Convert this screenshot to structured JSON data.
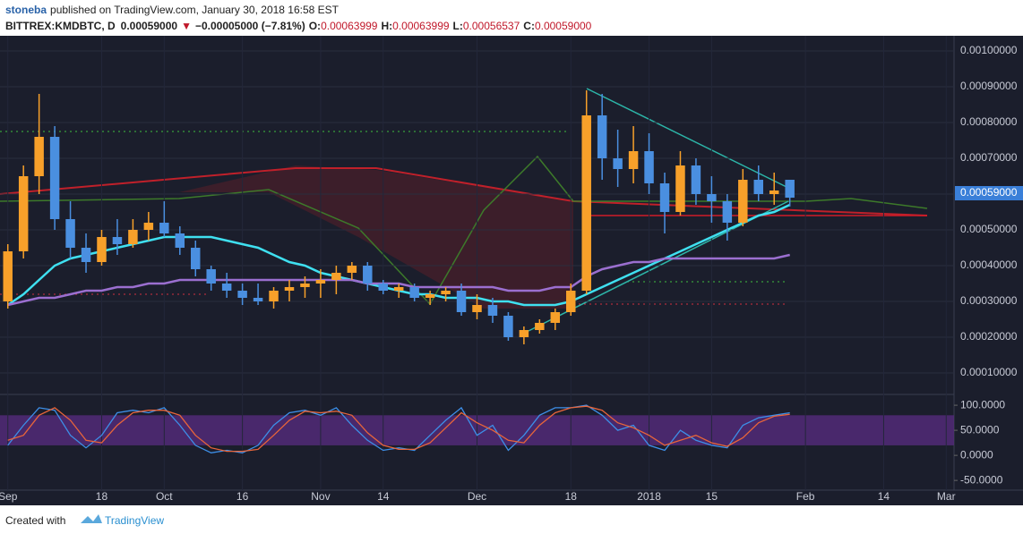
{
  "header": {
    "author": "stoneba",
    "published": "published on TradingView.com, January 30, 2018 16:58 EST",
    "symbol": "BITTREX:KMDBTC, D",
    "last": "0.00059000",
    "arrow": "▼",
    "change": "−0.00005000 (−7.81%)",
    "o_label": "O:",
    "o": "0.00063999",
    "h_label": "H:",
    "h": "0.00063999",
    "l_label": "L:",
    "l": "0.00056537",
    "c_label": "C:",
    "c": "0.00059000"
  },
  "chart_data": {
    "type": "candlestick",
    "categories": [
      "Sep",
      null,
      null,
      null,
      null,
      null,
      "18",
      null,
      null,
      null,
      "Oct",
      null,
      null,
      null,
      null,
      "16",
      null,
      null,
      null,
      null,
      "Nov",
      null,
      null,
      null,
      "14",
      null,
      null,
      null,
      null,
      null,
      "Dec",
      null,
      null,
      null,
      null,
      null,
      "18",
      null,
      null,
      null,
      null,
      "2018",
      null,
      null,
      null,
      "15",
      null,
      null,
      null,
      null,
      null,
      "Feb",
      null,
      null,
      null,
      null,
      "14",
      null,
      null,
      null,
      "Mar"
    ],
    "ohlc": [
      [
        0.0003,
        0.00046,
        0.00028,
        0.00044
      ],
      [
        0.00044,
        0.00068,
        0.00042,
        0.00065
      ],
      [
        0.00065,
        0.00088,
        0.0006,
        0.00076
      ],
      [
        0.00076,
        0.00079,
        0.0005,
        0.00053
      ],
      [
        0.00053,
        0.00058,
        0.00042,
        0.00045
      ],
      [
        0.00045,
        0.00049,
        0.00038,
        0.00041
      ],
      [
        0.00041,
        0.0005,
        0.0004,
        0.00048
      ],
      [
        0.00048,
        0.00053,
        0.00043,
        0.00046
      ],
      [
        0.00046,
        0.00053,
        0.00045,
        0.0005
      ],
      [
        0.0005,
        0.00055,
        0.00047,
        0.00052
      ],
      [
        0.00052,
        0.00058,
        0.00048,
        0.00049
      ],
      [
        0.00049,
        0.00051,
        0.00043,
        0.00045
      ],
      [
        0.00045,
        0.00047,
        0.00037,
        0.00039
      ],
      [
        0.00039,
        0.0004,
        0.00033,
        0.00035
      ],
      [
        0.00035,
        0.00038,
        0.00031,
        0.00033
      ],
      [
        0.00033,
        0.00035,
        0.00029,
        0.00031
      ],
      [
        0.00031,
        0.00035,
        0.00029,
        0.0003
      ],
      [
        0.0003,
        0.00034,
        0.00028,
        0.00033
      ],
      [
        0.00033,
        0.00036,
        0.0003,
        0.00034
      ],
      [
        0.00034,
        0.00037,
        0.00031,
        0.00035
      ],
      [
        0.00035,
        0.00039,
        0.00031,
        0.00036
      ],
      [
        0.00036,
        0.0004,
        0.00032,
        0.00038
      ],
      [
        0.00038,
        0.00041,
        0.00036,
        0.0004
      ],
      [
        0.0004,
        0.00041,
        0.00033,
        0.00035
      ],
      [
        0.00035,
        0.00036,
        0.00032,
        0.00033
      ],
      [
        0.00033,
        0.00035,
        0.00031,
        0.00034
      ],
      [
        0.00034,
        0.00035,
        0.0003,
        0.00031
      ],
      [
        0.00031,
        0.00033,
        0.00029,
        0.00032
      ],
      [
        0.00032,
        0.00034,
        0.0003,
        0.00033
      ],
      [
        0.00033,
        0.00035,
        0.00026,
        0.00027
      ],
      [
        0.00027,
        0.00032,
        0.00025,
        0.00029
      ],
      [
        0.00029,
        0.00031,
        0.00024,
        0.00026
      ],
      [
        0.00026,
        0.00027,
        0.00019,
        0.0002
      ],
      [
        0.0002,
        0.00023,
        0.00018,
        0.00022
      ],
      [
        0.00022,
        0.00025,
        0.00021,
        0.00024
      ],
      [
        0.00024,
        0.00028,
        0.00022,
        0.00027
      ],
      [
        0.00027,
        0.00035,
        0.00026,
        0.00033
      ],
      [
        0.00033,
        0.00089,
        0.00032,
        0.00082
      ],
      [
        0.00082,
        0.00088,
        0.00064,
        0.0007
      ],
      [
        0.0007,
        0.00078,
        0.00062,
        0.00067
      ],
      [
        0.00067,
        0.00079,
        0.00063,
        0.00072
      ],
      [
        0.00072,
        0.00077,
        0.0006,
        0.00063
      ],
      [
        0.00063,
        0.00066,
        0.00049,
        0.00055
      ],
      [
        0.00055,
        0.00072,
        0.00054,
        0.00068
      ],
      [
        0.00068,
        0.0007,
        0.00057,
        0.0006
      ],
      [
        0.0006,
        0.00065,
        0.00052,
        0.00058
      ],
      [
        0.00058,
        0.0006,
        0.00047,
        0.00052
      ],
      [
        0.00052,
        0.00067,
        0.00051,
        0.00064
      ],
      [
        0.00064,
        0.00068,
        0.00058,
        0.0006
      ],
      [
        0.0006,
        0.00066,
        0.00057,
        0.00061
      ],
      [
        0.00063999,
        0.00063999,
        0.00056537,
        0.00059
      ],
      null,
      null,
      null,
      null,
      null,
      null,
      null,
      null,
      null,
      null
    ],
    "up_color": "#f7a02a",
    "down_color": "#4a8fe0",
    "lines": [
      {
        "color": "#3fe0f0",
        "values": [
          0.00029,
          0.00032,
          0.00036,
          0.0004,
          0.00042,
          0.00043,
          0.00044,
          0.00045,
          0.00046,
          0.00047,
          0.00048,
          0.00048,
          0.00048,
          0.00048,
          0.00047,
          0.00046,
          0.00045,
          0.00043,
          0.00041,
          0.0004,
          0.00038,
          0.00037,
          0.00036,
          0.00035,
          0.00034,
          0.00033,
          0.00032,
          0.00032,
          0.00031,
          0.00031,
          0.00031,
          0.0003,
          0.0003,
          0.00029,
          0.00029,
          0.00029,
          0.0003,
          0.00032,
          0.00034,
          0.00036,
          0.00038,
          0.0004,
          0.00042,
          0.00044,
          0.00046,
          0.00048,
          0.0005,
          0.00052,
          0.00054,
          0.00055,
          0.00057,
          null,
          null,
          null,
          null,
          null,
          null,
          null,
          null,
          null,
          null
        ]
      },
      {
        "color": "#9b6fd0",
        "values": [
          0.00029,
          0.0003,
          0.00031,
          0.00031,
          0.00032,
          0.00033,
          0.00033,
          0.00034,
          0.00034,
          0.00035,
          0.00035,
          0.00036,
          0.00036,
          0.00036,
          0.00036,
          0.00036,
          0.00036,
          0.00036,
          0.00036,
          0.00036,
          0.00036,
          0.00036,
          0.00036,
          0.00035,
          0.00035,
          0.00035,
          0.00034,
          0.00034,
          0.00034,
          0.00034,
          0.00034,
          0.00034,
          0.00033,
          0.00033,
          0.00033,
          0.00034,
          0.00034,
          0.00037,
          0.00039,
          0.0004,
          0.00041,
          0.00041,
          0.00042,
          0.00042,
          0.00042,
          0.00042,
          0.00042,
          0.00042,
          0.00042,
          0.00042,
          0.00043,
          null,
          null,
          null,
          null,
          null,
          null,
          null,
          null,
          null,
          null
        ]
      }
    ],
    "ylim": [
      4.25e-05,
      0.00103
    ],
    "yticks": [
      {
        "value": 0.0001,
        "label": "0.00010000"
      },
      {
        "value": 0.0002,
        "label": "0.00020000"
      },
      {
        "value": 0.0003,
        "label": "0.00030000"
      },
      {
        "value": 0.0004,
        "label": "0.00040000"
      },
      {
        "value": 0.0005,
        "label": "0.00050000"
      },
      {
        "value": 0.0006,
        "label": "0.00060000"
      },
      {
        "value": 0.0007,
        "label": "0.00070000"
      },
      {
        "value": 0.0008,
        "label": "0.00080000"
      },
      {
        "value": 0.0009,
        "label": "0.00090000"
      },
      {
        "value": 0.001,
        "label": "0.00100000"
      }
    ],
    "grid": true,
    "oscillator": {
      "type": "line",
      "ylim": [
        -64,
        118
      ],
      "yticks": [
        {
          "value": 100,
          "label": "100.0000"
        },
        {
          "value": 50,
          "label": "50.0000"
        },
        {
          "value": 0,
          "label": "0.0000"
        },
        {
          "value": -50,
          "label": "-50.0000"
        }
      ],
      "band": [
        20,
        80
      ],
      "band_color": "#5a2c82",
      "series": [
        {
          "color": "#3d8fe8",
          "values": [
            20,
            60,
            95,
            90,
            40,
            15,
            40,
            85,
            90,
            85,
            95,
            60,
            20,
            5,
            10,
            5,
            20,
            60,
            85,
            90,
            80,
            95,
            60,
            30,
            10,
            15,
            10,
            40,
            70,
            95,
            40,
            60,
            10,
            40,
            80,
            95,
            95,
            100,
            80,
            50,
            60,
            20,
            10,
            50,
            30,
            20,
            15,
            60,
            75,
            80,
            85,
            null,
            null,
            null,
            null,
            null,
            null,
            null,
            null,
            null,
            null
          ]
        },
        {
          "color": "#e8653a",
          "values": [
            30,
            40,
            80,
            95,
            70,
            30,
            25,
            60,
            85,
            90,
            90,
            80,
            40,
            15,
            8,
            8,
            12,
            40,
            70,
            88,
            85,
            88,
            80,
            45,
            20,
            12,
            12,
            25,
            55,
            85,
            65,
            50,
            30,
            25,
            60,
            85,
            95,
            98,
            90,
            65,
            55,
            40,
            20,
            30,
            40,
            25,
            18,
            35,
            65,
            78,
            82,
            null,
            null,
            null,
            null,
            null,
            null,
            null,
            null,
            null,
            null
          ]
        }
      ]
    }
  },
  "footer": {
    "created": "Created with",
    "brand": "TradingView"
  }
}
